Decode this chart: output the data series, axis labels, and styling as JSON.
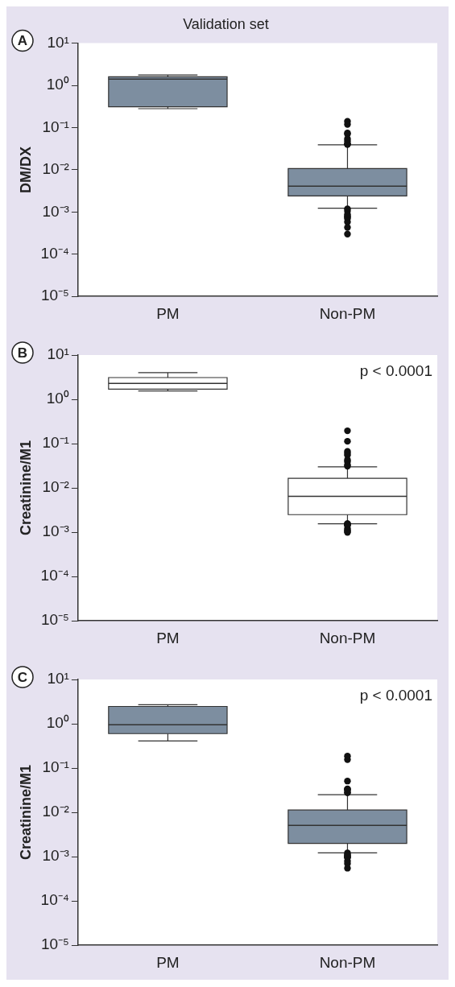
{
  "chart_data": [
    {
      "type": "box",
      "title": "Validation set",
      "ylabel": "DM/DX",
      "categories": [
        "PM",
        "Non-PM"
      ],
      "log": "y",
      "ylim": [
        1e-05,
        10
      ],
      "yticks": [
        {
          "value": 1e-05,
          "label": "10⁻⁵"
        },
        {
          "value": 0.0001,
          "label": "10⁻⁴"
        },
        {
          "value": 0.001,
          "label": "10⁻³"
        },
        {
          "value": 0.01,
          "label": "10⁻²"
        },
        {
          "value": 0.1,
          "label": "10⁻¹"
        },
        {
          "value": 1,
          "label": "10⁰"
        },
        {
          "value": 10,
          "label": "10¹"
        }
      ],
      "grid": false,
      "legend": false,
      "annotations": [
        "A"
      ],
      "series": [
        {
          "color": "#7d8ea0",
          "boxes": [
            {
              "low": 0.28,
              "q1": 0.31,
              "median": 1.4,
              "q3": 1.6,
              "high": 1.77
            },
            {
              "low": 0.00123,
              "q1": 0.0024,
              "median": 0.0041,
              "q3": 0.0107,
              "high": 0.039,
              "outliers": [
                0.14,
                0.119,
                0.07,
                0.074,
                0.048,
                0.04,
                0.04,
                0.041,
                0.054,
                0.00106,
                0.00119,
                0.00079,
                0.0007,
                0.00058,
                0.00076,
                0.00088,
                0.00043,
                0.0003
              ]
            }
          ]
        }
      ]
    },
    {
      "type": "box",
      "ylabel": "Creatinine/M1",
      "categories": [
        "PM",
        "Non-PM"
      ],
      "log": "y",
      "ylim": [
        1e-05,
        10
      ],
      "yticks": [
        {
          "value": 1e-05,
          "label": "10⁻⁵"
        },
        {
          "value": 0.0001,
          "label": "10⁻⁴"
        },
        {
          "value": 0.001,
          "label": "10⁻³"
        },
        {
          "value": 0.01,
          "label": "10⁻²"
        },
        {
          "value": 0.1,
          "label": "10⁻¹"
        },
        {
          "value": 1,
          "label": "10⁰"
        },
        {
          "value": 10,
          "label": "10¹"
        }
      ],
      "grid": false,
      "legend": false,
      "annotations": [
        "B",
        "p < 0.0001"
      ],
      "series": [
        {
          "color": "#ffffff",
          "boxes": [
            {
              "low": 1.55,
              "q1": 1.7,
              "median": 2.3,
              "q3": 3.1,
              "high": 4.0
            },
            {
              "low": 0.00155,
              "q1": 0.0025,
              "median": 0.0065,
              "q3": 0.0165,
              "high": 0.03,
              "outliers": [
                0.195,
                0.113,
                0.061,
                0.067,
                0.055,
                0.039,
                0.043,
                0.031,
                0.033,
                0.0015,
                0.00143,
                0.00157,
                0.00154,
                0.00122,
                0.00147,
                0.0011,
                0.00106,
                0.00099
              ]
            }
          ]
        }
      ]
    },
    {
      "type": "box",
      "ylabel": "Creatinine/M1",
      "categories": [
        "PM",
        "Non-PM"
      ],
      "log": "y",
      "ylim": [
        1e-05,
        10
      ],
      "yticks": [
        {
          "value": 1e-05,
          "label": "10⁻⁵"
        },
        {
          "value": 0.0001,
          "label": "10⁻⁴"
        },
        {
          "value": 0.001,
          "label": "10⁻³"
        },
        {
          "value": 0.01,
          "label": "10⁻²"
        },
        {
          "value": 0.1,
          "label": "10⁻¹"
        },
        {
          "value": 1,
          "label": "10⁰"
        },
        {
          "value": 10,
          "label": "10¹"
        }
      ],
      "grid": false,
      "legend": false,
      "annotations": [
        "C",
        "p < 0.0001"
      ],
      "series": [
        {
          "color": "#7d8ea0",
          "boxes": [
            {
              "low": 0.41,
              "q1": 0.6,
              "median": 0.95,
              "q3": 2.46,
              "high": 2.7
            },
            {
              "low": 0.00122,
              "q1": 0.002,
              "median": 0.0051,
              "q3": 0.0113,
              "high": 0.025,
              "outliers": [
                0.155,
                0.186,
                0.051,
                0.034,
                0.032,
                0.028,
                0.028,
                0.033,
                0.00122,
                0.00108,
                0.00097,
                0.00097,
                0.00097,
                0.0011,
                0.0008,
                0.0007,
                0.00055
              ]
            }
          ]
        }
      ]
    }
  ]
}
